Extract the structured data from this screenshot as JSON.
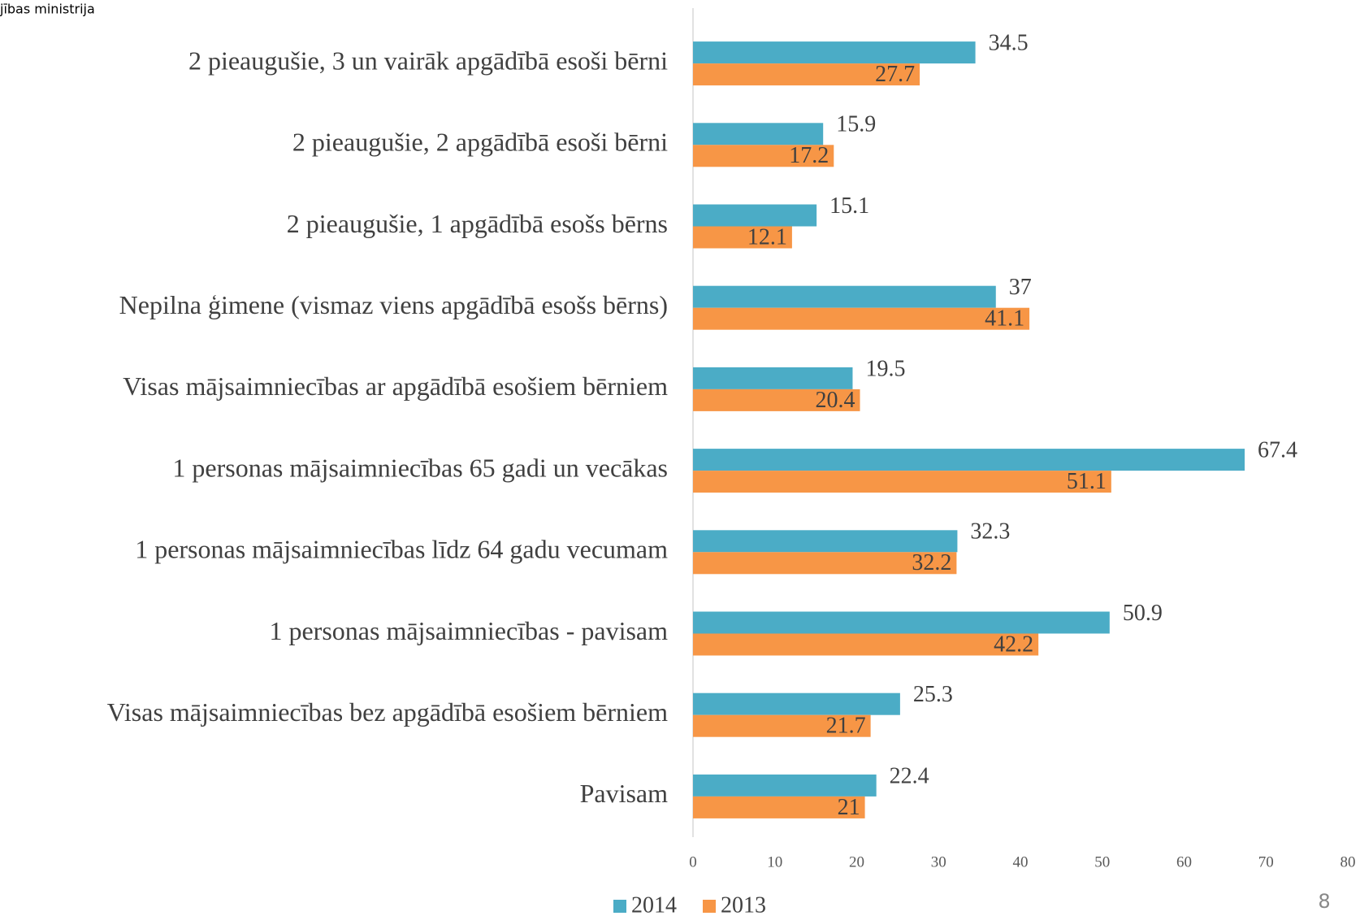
{
  "header": "jības ministrija",
  "page_number": "8",
  "chart_data": {
    "type": "barh",
    "categories": [
      "2 pieaugušie, 3 un vairāk apgādībā esoši bērni",
      "2 pieaugušie, 2 apgādībā esoši bērni",
      "2 pieaugušie, 1 apgādībā esošs bērns",
      "Nepilna ģimene (vismaz viens apgādībā esošs bērns)",
      "Visas mājsaimniecības ar apgādībā esošiem bērniem",
      "1 personas mājsaimniecības 65 gadi un vecākas",
      "1 personas mājsaimniecības līdz 64 gadu vecumam",
      "1 personas mājsaimniecības - pavisam",
      "Visas mājsaimniecības bez apgādībā esošiem bērniem",
      "Pavisam"
    ],
    "series": [
      {
        "name": "2014",
        "color": "#4bacc6",
        "values": [
          34.5,
          15.9,
          15.1,
          37,
          19.5,
          67.4,
          32.3,
          50.9,
          25.3,
          22.4
        ]
      },
      {
        "name": "2013",
        "color": "#f79646",
        "values": [
          27.7,
          17.2,
          12.1,
          41.1,
          20.4,
          51.1,
          32.2,
          42.2,
          21.7,
          21
        ]
      }
    ],
    "xlim": [
      0,
      80
    ],
    "xticks": [
      0,
      10,
      20,
      30,
      40,
      50,
      60,
      70,
      80
    ],
    "grid": false,
    "legend": "bottom"
  }
}
